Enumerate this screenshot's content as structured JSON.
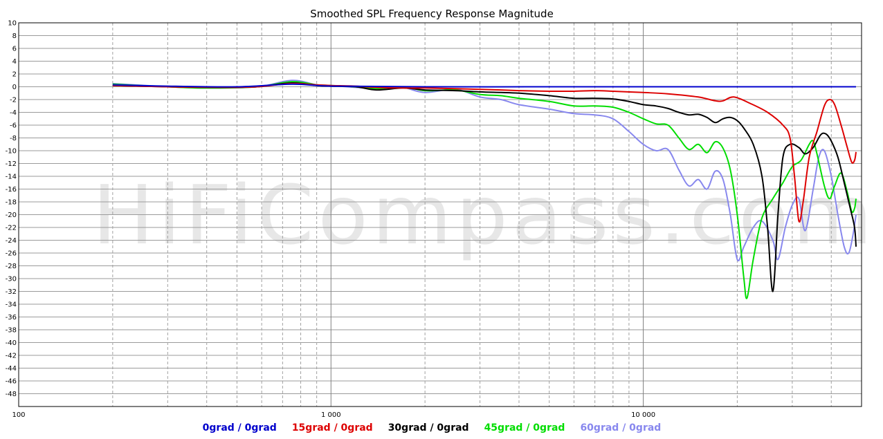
{
  "chart_data": {
    "type": "line",
    "title": "Smoothed SPL Frequency Response Magnitude",
    "watermark": "HiFiCompass.com",
    "xscale": "log",
    "xlim": [
      100,
      50000
    ],
    "ylim": [
      -50,
      10
    ],
    "grid": true,
    "x_tick_labels": [
      {
        "value": 100,
        "label": "100"
      },
      {
        "value": 1000,
        "label": "1 000"
      },
      {
        "value": 10000,
        "label": "10 000"
      }
    ],
    "y_tick_labels": [
      "10",
      "8",
      "6",
      "4",
      "2",
      "0",
      "-2",
      "-4",
      "-6",
      "-8",
      "-10",
      "-12",
      "-14",
      "-16",
      "-18",
      "-20",
      "-22",
      "-24",
      "-26",
      "-28",
      "-30",
      "-32",
      "-34",
      "-36",
      "-38",
      "-40",
      "-42",
      "-44",
      "-46",
      "-48"
    ],
    "legend_position": "bottom",
    "series": [
      {
        "name": "0grad / 0grad",
        "color": "#0000cc",
        "points": [
          [
            200,
            0.3
          ],
          [
            300,
            0.1
          ],
          [
            500,
            0.0
          ],
          [
            750,
            0.4
          ],
          [
            1000,
            0.1
          ],
          [
            2000,
            0.0
          ],
          [
            5000,
            0.0
          ],
          [
            10000,
            0.0
          ],
          [
            20000,
            0.0
          ],
          [
            48000,
            0.0
          ]
        ]
      },
      {
        "name": "15grad / 0grad",
        "color": "#dd0000",
        "points": [
          [
            200,
            0.2
          ],
          [
            300,
            0.0
          ],
          [
            450,
            -0.1
          ],
          [
            580,
            0.0
          ],
          [
            750,
            0.5
          ],
          [
            900,
            0.3
          ],
          [
            1000,
            0.2
          ],
          [
            1200,
            0.1
          ],
          [
            1400,
            -0.1
          ],
          [
            1700,
            -0.2
          ],
          [
            2000,
            -0.2
          ],
          [
            2500,
            -0.3
          ],
          [
            3000,
            -0.4
          ],
          [
            3500,
            -0.5
          ],
          [
            4000,
            -0.6
          ],
          [
            5000,
            -0.7
          ],
          [
            6000,
            -0.7
          ],
          [
            7000,
            -0.6
          ],
          [
            8000,
            -0.7
          ],
          [
            10000,
            -0.9
          ],
          [
            12000,
            -1.1
          ],
          [
            15000,
            -1.6
          ],
          [
            17000,
            -2.2
          ],
          [
            18000,
            -2.2
          ],
          [
            19500,
            -1.6
          ],
          [
            22000,
            -2.6
          ],
          [
            25000,
            -4.0
          ],
          [
            28000,
            -6.0
          ],
          [
            29500,
            -8.0
          ],
          [
            30500,
            -14.0
          ],
          [
            31500,
            -21.0
          ],
          [
            32500,
            -18.0
          ],
          [
            34000,
            -11.0
          ],
          [
            36000,
            -7.0
          ],
          [
            38000,
            -3.0
          ],
          [
            39500,
            -2.0
          ],
          [
            41000,
            -2.8
          ],
          [
            43000,
            -6.0
          ],
          [
            45000,
            -9.5
          ],
          [
            46500,
            -11.8
          ],
          [
            47500,
            -11.5
          ],
          [
            48000,
            -10.2
          ]
        ]
      },
      {
        "name": "30grad / 0grad",
        "color": "#000000",
        "points": [
          [
            200,
            0.2
          ],
          [
            300,
            0.0
          ],
          [
            450,
            -0.1
          ],
          [
            580,
            0.0
          ],
          [
            750,
            0.6
          ],
          [
            900,
            0.2
          ],
          [
            1000,
            0.1
          ],
          [
            1200,
            0.0
          ],
          [
            1400,
            -0.5
          ],
          [
            1700,
            -0.2
          ],
          [
            2000,
            -0.5
          ],
          [
            2500,
            -0.6
          ],
          [
            3000,
            -0.8
          ],
          [
            3500,
            -0.9
          ],
          [
            4000,
            -1.0
          ],
          [
            5000,
            -1.4
          ],
          [
            6000,
            -1.8
          ],
          [
            7000,
            -1.8
          ],
          [
            8000,
            -1.9
          ],
          [
            9000,
            -2.3
          ],
          [
            10000,
            -2.8
          ],
          [
            11000,
            -3.0
          ],
          [
            12000,
            -3.4
          ],
          [
            13000,
            -4.0
          ],
          [
            14000,
            -4.4
          ],
          [
            15000,
            -4.3
          ],
          [
            16000,
            -4.8
          ],
          [
            17000,
            -5.6
          ],
          [
            18000,
            -5.0
          ],
          [
            19000,
            -4.8
          ],
          [
            20000,
            -5.3
          ],
          [
            21000,
            -6.5
          ],
          [
            22500,
            -9.0
          ],
          [
            24000,
            -14.0
          ],
          [
            25000,
            -22.0
          ],
          [
            26000,
            -32.0
          ],
          [
            27000,
            -20.0
          ],
          [
            28000,
            -11.0
          ],
          [
            29500,
            -9.0
          ],
          [
            31500,
            -9.5
          ],
          [
            33000,
            -10.5
          ],
          [
            35000,
            -9.5
          ],
          [
            37000,
            -7.5
          ],
          [
            38500,
            -7.4
          ],
          [
            40000,
            -8.5
          ],
          [
            42000,
            -11.0
          ],
          [
            44000,
            -15.0
          ],
          [
            46000,
            -19.0
          ],
          [
            47500,
            -22.0
          ],
          [
            48000,
            -25.0
          ]
        ]
      },
      {
        "name": "45grad / 0grad",
        "color": "#00dd00",
        "points": [
          [
            200,
            0.4
          ],
          [
            300,
            0.0
          ],
          [
            400,
            -0.2
          ],
          [
            580,
            0.0
          ],
          [
            750,
            0.8
          ],
          [
            900,
            0.3
          ],
          [
            1000,
            0.2
          ],
          [
            1200,
            0.0
          ],
          [
            1400,
            -0.3
          ],
          [
            1700,
            0.0
          ],
          [
            2000,
            -0.6
          ],
          [
            2500,
            -0.5
          ],
          [
            3000,
            -1.2
          ],
          [
            3500,
            -1.4
          ],
          [
            4000,
            -1.8
          ],
          [
            5000,
            -2.3
          ],
          [
            6000,
            -3.0
          ],
          [
            7000,
            -3.0
          ],
          [
            8000,
            -3.2
          ],
          [
            9000,
            -4.0
          ],
          [
            10000,
            -5.0
          ],
          [
            11000,
            -5.8
          ],
          [
            12000,
            -6.0
          ],
          [
            13000,
            -8.0
          ],
          [
            14000,
            -9.8
          ],
          [
            15000,
            -9.0
          ],
          [
            16000,
            -10.3
          ],
          [
            17000,
            -8.6
          ],
          [
            18000,
            -9.6
          ],
          [
            19000,
            -13.0
          ],
          [
            20000,
            -20.0
          ],
          [
            21000,
            -30.0
          ],
          [
            21500,
            -33.0
          ],
          [
            22500,
            -27.0
          ],
          [
            24000,
            -20.5
          ],
          [
            26000,
            -17.5
          ],
          [
            28000,
            -15.0
          ],
          [
            30000,
            -12.5
          ],
          [
            32000,
            -11.5
          ],
          [
            34000,
            -9.0
          ],
          [
            35000,
            -8.5
          ],
          [
            36000,
            -10.5
          ],
          [
            38000,
            -15.5
          ],
          [
            39500,
            -17.5
          ],
          [
            41000,
            -15.5
          ],
          [
            43000,
            -13.5
          ],
          [
            45000,
            -16.5
          ],
          [
            46500,
            -19.5
          ],
          [
            47500,
            -19.0
          ],
          [
            48000,
            -17.5
          ]
        ]
      },
      {
        "name": "60grad / 0grad",
        "color": "#8888ee",
        "points": [
          [
            200,
            0.5
          ],
          [
            300,
            0.0
          ],
          [
            400,
            -0.2
          ],
          [
            580,
            0.0
          ],
          [
            750,
            1.0
          ],
          [
            900,
            0.3
          ],
          [
            1000,
            0.2
          ],
          [
            1200,
            -0.1
          ],
          [
            1500,
            -0.3
          ],
          [
            1700,
            -0.1
          ],
          [
            2000,
            -0.9
          ],
          [
            2500,
            -0.4
          ],
          [
            3000,
            -1.6
          ],
          [
            3500,
            -2.0
          ],
          [
            4000,
            -2.8
          ],
          [
            5000,
            -3.5
          ],
          [
            6000,
            -4.2
          ],
          [
            7000,
            -4.4
          ],
          [
            8000,
            -5.0
          ],
          [
            9000,
            -7.0
          ],
          [
            10000,
            -9.0
          ],
          [
            11000,
            -10.0
          ],
          [
            12000,
            -9.8
          ],
          [
            13000,
            -13.0
          ],
          [
            14000,
            -15.5
          ],
          [
            15000,
            -14.5
          ],
          [
            16000,
            -16.0
          ],
          [
            17000,
            -13.2
          ],
          [
            18000,
            -14.5
          ],
          [
            19000,
            -20.0
          ],
          [
            20000,
            -27.0
          ],
          [
            21000,
            -25.0
          ],
          [
            22500,
            -22.0
          ],
          [
            24000,
            -21.0
          ],
          [
            26000,
            -24.0
          ],
          [
            27000,
            -27.0
          ],
          [
            28500,
            -22.0
          ],
          [
            30000,
            -18.5
          ],
          [
            31500,
            -17.5
          ],
          [
            33000,
            -22.5
          ],
          [
            35000,
            -16.0
          ],
          [
            36500,
            -11.0
          ],
          [
            38000,
            -10.0
          ],
          [
            40000,
            -14.0
          ],
          [
            42000,
            -20.0
          ],
          [
            44000,
            -25.0
          ],
          [
            45500,
            -26.0
          ],
          [
            47000,
            -23.0
          ],
          [
            48000,
            -20.0
          ]
        ]
      }
    ]
  }
}
